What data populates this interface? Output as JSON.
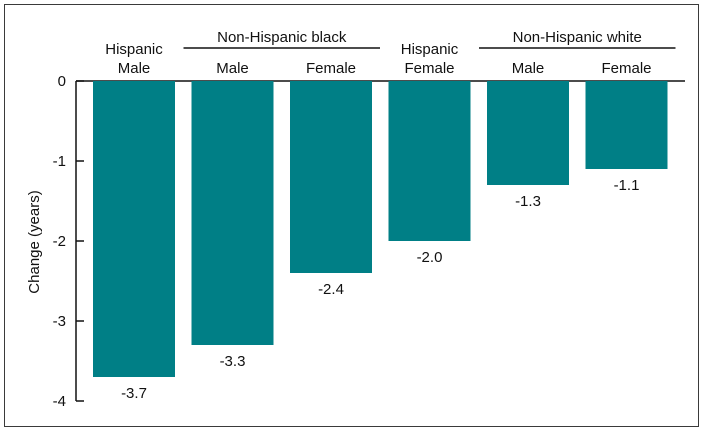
{
  "chart_data": {
    "type": "bar",
    "ylabel": "Change (years)",
    "ylim": [
      -4,
      0
    ],
    "yticks": [
      "0",
      "-1",
      "-2",
      "-3",
      "-4"
    ],
    "grid": false,
    "bar_color": "#007f86",
    "groups": [
      {
        "label": "Non-Hispanic black",
        "categories": [
          1,
          2
        ]
      },
      {
        "label": "Non-Hispanic white",
        "categories": [
          4,
          5
        ]
      }
    ],
    "categories": [
      {
        "line1": "Hispanic",
        "line2": "Male"
      },
      {
        "line1": "",
        "line2": "Male"
      },
      {
        "line1": "",
        "line2": "Female"
      },
      {
        "line1": "Hispanic",
        "line2": "Female"
      },
      {
        "line1": "",
        "line2": "Male"
      },
      {
        "line1": "",
        "line2": "Female"
      }
    ],
    "values": [
      -3.7,
      -3.3,
      -2.4,
      -2.0,
      -1.3,
      -1.1
    ],
    "value_labels": [
      "-3.7",
      "-3.3",
      "-2.4",
      "-2.0",
      "-1.3",
      "-1.1"
    ]
  }
}
